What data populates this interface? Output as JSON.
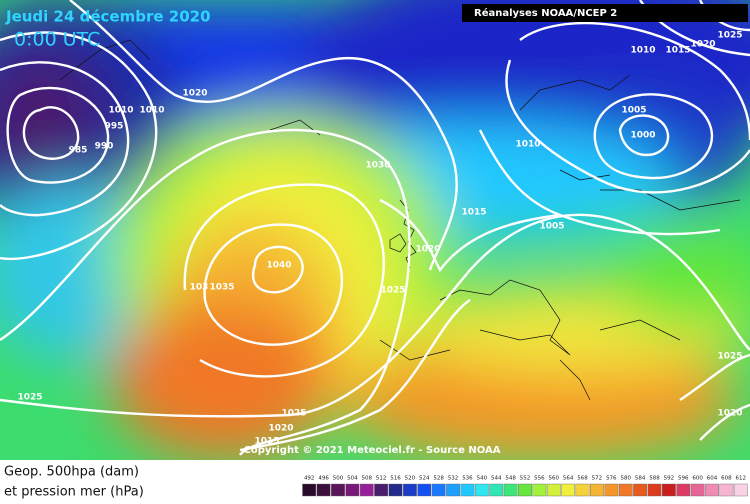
{
  "header": {
    "date": "Jeudi 24 décembre 2020",
    "time": "0:00 UTC",
    "source": "Réanalyses NOAA/NCEP 2"
  },
  "isobar_labels": [
    "1020",
    "1010",
    "1010",
    "995",
    "990",
    "985",
    "1030",
    "1040",
    "103",
    "1035",
    "1025",
    "1020",
    "1015",
    "1010",
    "1005",
    "1005",
    "1000",
    "1010",
    "1015",
    "1020",
    "1025",
    "1025",
    "1025",
    "1020",
    "1015",
    "1025",
    "1020"
  ],
  "copyright": "Copyright © 2021 Meteociel.fr - Source NOAA",
  "legend": {
    "title_line1": "Geop. 500hpa (dam)",
    "title_line2": "et pression mer (hPa)",
    "values": [
      492,
      496,
      500,
      504,
      508,
      512,
      516,
      520,
      524,
      528,
      532,
      536,
      540,
      544,
      548,
      552,
      556,
      560,
      564,
      568,
      572,
      576,
      580,
      584,
      588,
      592,
      596,
      600,
      604,
      608,
      612
    ],
    "colors": [
      "#2a0a2a",
      "#3c0f3c",
      "#5a145a",
      "#78197a",
      "#96209a",
      "#4a1c6e",
      "#232a8c",
      "#1c3cc8",
      "#1450f0",
      "#1a78ff",
      "#1ea0ff",
      "#20c8ff",
      "#30e6f0",
      "#30e6b4",
      "#3ce678",
      "#64e63c",
      "#a0f03c",
      "#d2f03c",
      "#f0f03c",
      "#f5d23c",
      "#f5b432",
      "#f59628",
      "#f07828",
      "#e65a1e",
      "#dc3c1e",
      "#c81e1e",
      "#dc3c64",
      "#e66496",
      "#f08cb4",
      "#f5b4d2",
      "#fad2e6"
    ]
  }
}
